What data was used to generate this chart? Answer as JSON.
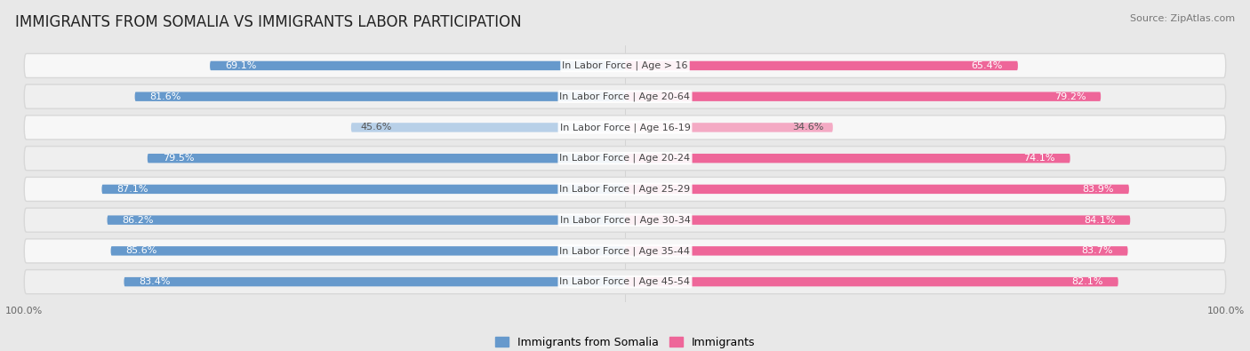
{
  "title": "IMMIGRANTS FROM SOMALIA VS IMMIGRANTS LABOR PARTICIPATION",
  "source": "Source: ZipAtlas.com",
  "categories": [
    "In Labor Force | Age > 16",
    "In Labor Force | Age 20-64",
    "In Labor Force | Age 16-19",
    "In Labor Force | Age 20-24",
    "In Labor Force | Age 25-29",
    "In Labor Force | Age 30-34",
    "In Labor Force | Age 35-44",
    "In Labor Force | Age 45-54"
  ],
  "somalia_values": [
    69.1,
    81.6,
    45.6,
    79.5,
    87.1,
    86.2,
    85.6,
    83.4
  ],
  "immigrant_values": [
    65.4,
    79.2,
    34.6,
    74.1,
    83.9,
    84.1,
    83.7,
    82.1
  ],
  "somalia_color_dark": "#6699cc",
  "somalia_color_light": "#b8d0e8",
  "immigrant_color_dark": "#ee6699",
  "immigrant_color_light": "#f4aac4",
  "row_bg_even": "#f7f7f7",
  "row_bg_odd": "#efefef",
  "row_outline": "#d8d8d8",
  "background_color": "#e8e8e8",
  "title_fontsize": 12,
  "cat_fontsize": 8,
  "value_fontsize": 8,
  "legend_fontsize": 9,
  "source_fontsize": 8,
  "threshold": 60
}
